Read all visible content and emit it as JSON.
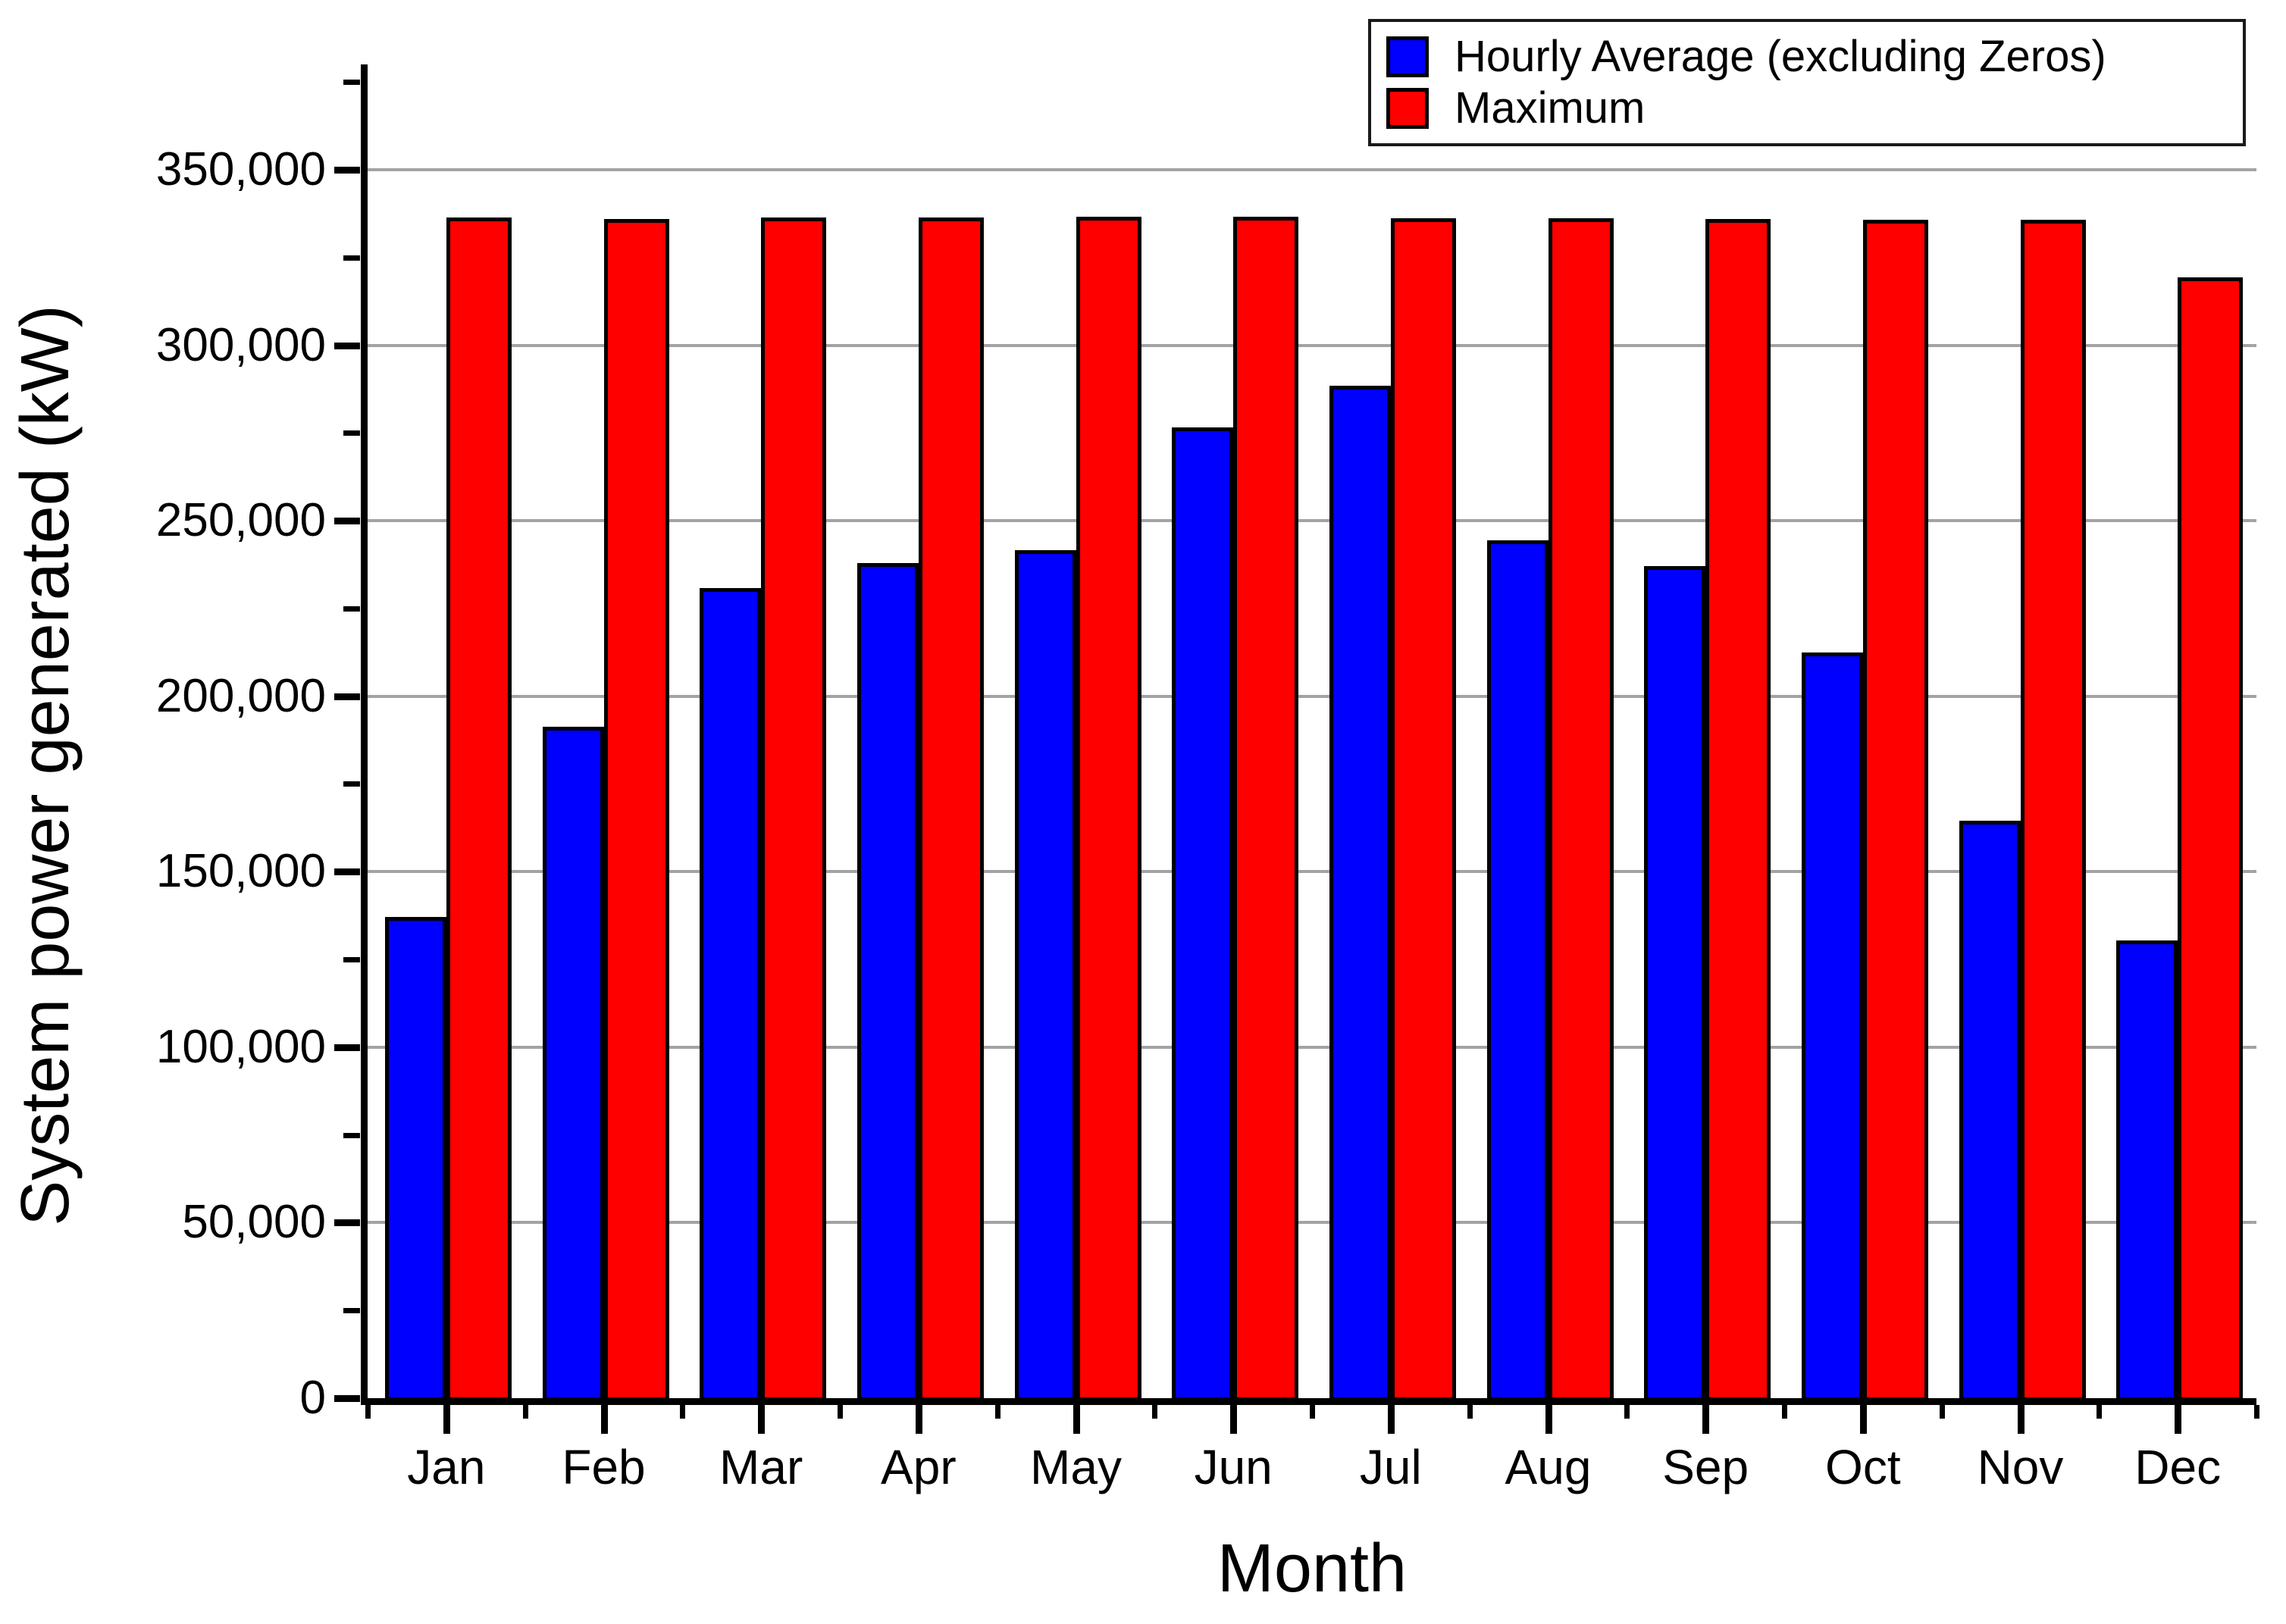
{
  "chart_data": {
    "type": "bar",
    "title": "",
    "xlabel": "Month",
    "ylabel": "System power generated (kW)",
    "categories": [
      "Jan",
      "Feb",
      "Mar",
      "Apr",
      "May",
      "Jun",
      "Jul",
      "Aug",
      "Sep",
      "Oct",
      "Nov",
      "Dec"
    ],
    "series": [
      {
        "name": "Hourly Average (excluding Zeros)",
        "color": "#0000ff",
        "values": [
          137000,
          191300,
          230700,
          238000,
          241500,
          276500,
          288500,
          244400,
          237000,
          212500,
          164500,
          130500
        ]
      },
      {
        "name": "Maximum",
        "color": "#ff0000",
        "values": [
          336400,
          335900,
          336400,
          336300,
          336600,
          336600,
          336100,
          336100,
          336000,
          335700,
          335700,
          319300
        ]
      }
    ],
    "ylim": [
      0,
      380000
    ],
    "y_major_ticks": [
      0,
      50000,
      100000,
      150000,
      200000,
      250000,
      300000,
      350000
    ],
    "y_tick_labels": [
      "0",
      "50,000",
      "100,000",
      "150,000",
      "200,000",
      "250,000",
      "300,000",
      "350,000"
    ],
    "y_minor_step": 25000,
    "y_major_step": 50000,
    "grid": "horizontal-major-gray",
    "legend_position": "top-right",
    "bar_border_color": "#000000",
    "gridline_color": "#a3a3a3"
  }
}
